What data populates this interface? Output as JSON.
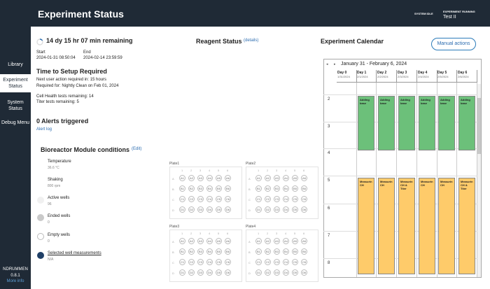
{
  "header": {
    "title": "Experiment Status",
    "system_status": "SYSTEM IDLE",
    "exp_running_label": "EXPERIMENT RUNNING",
    "exp_running_value": "Test II"
  },
  "sidebar": {
    "items": [
      "Library",
      "Experiment Status",
      "System Status",
      "Debug Menu"
    ],
    "user": "NDRUMMEN",
    "version": "0.8.1",
    "more_info": "More info"
  },
  "status": {
    "remaining": "14 dy 15 hr 07 min remaining",
    "start_label": "Start",
    "start_value": "2024-01-31 08:50:04",
    "end_label": "End",
    "end_value": "2024-02-14 23:59:59",
    "setup_title": "Time to Setup Required",
    "next_action": "Next user action required in: 15 hours",
    "required_for": "Required for: Nightly Clean on Feb 01, 2024",
    "cell_health": "Cell Health tests remaining: 14",
    "titer": "Titer tests remaining: 5",
    "alerts_title": "0 Alerts triggered",
    "alert_log": "Alert log"
  },
  "reagent": {
    "title": "Reagent Status",
    "details": "(details)"
  },
  "bioreactor": {
    "title": "Bioreactor Module conditions",
    "edit": "(Edit)",
    "temp_label": "Temperature",
    "temp_value": "36.6 °C",
    "shaking_label": "Shaking",
    "shaking_value": "800 rpm",
    "active_label": "Active wells",
    "active_value": "96",
    "ended_label": "Ended wells",
    "ended_value": "0",
    "empty_label": "Empty wells",
    "empty_value": "0",
    "selected_label": "Selected well measurements",
    "selected_value": "N/A"
  },
  "plates": [
    {
      "name": "Plate1"
    },
    {
      "name": "Plate2"
    },
    {
      "name": "Plate3"
    },
    {
      "name": "Plate4"
    }
  ],
  "plate_rows": [
    "A",
    "B",
    "C",
    "D"
  ],
  "plate_cols": [
    "1",
    "2",
    "3",
    "4",
    "5",
    "6"
  ],
  "calendar": {
    "title": "Experiment Calendar",
    "manual_actions": "Manual actions",
    "range": "January 31 - February 6, 2024",
    "days": [
      {
        "label": "Day 0",
        "date": "1/31/2024"
      },
      {
        "label": "Day 1",
        "date": "2/1/2024"
      },
      {
        "label": "Day 2",
        "date": "2/2/2024"
      },
      {
        "label": "Day 3",
        "date": "2/3/2024"
      },
      {
        "label": "Day 4",
        "date": "2/4/2024"
      },
      {
        "label": "Day 5",
        "date": "2/5/2024"
      },
      {
        "label": "Day 6",
        "date": "2/6/2024"
      }
    ],
    "hours": [
      "2",
      "3",
      "4",
      "5",
      "6",
      "7",
      "8"
    ],
    "green_label": "Adding base",
    "orange_labels": [
      "Measurin CH",
      "Measurin CH",
      "Measurin CH & Titer",
      "Measurin CH",
      "Measurin CH",
      "Measurin CH & Titer"
    ]
  }
}
